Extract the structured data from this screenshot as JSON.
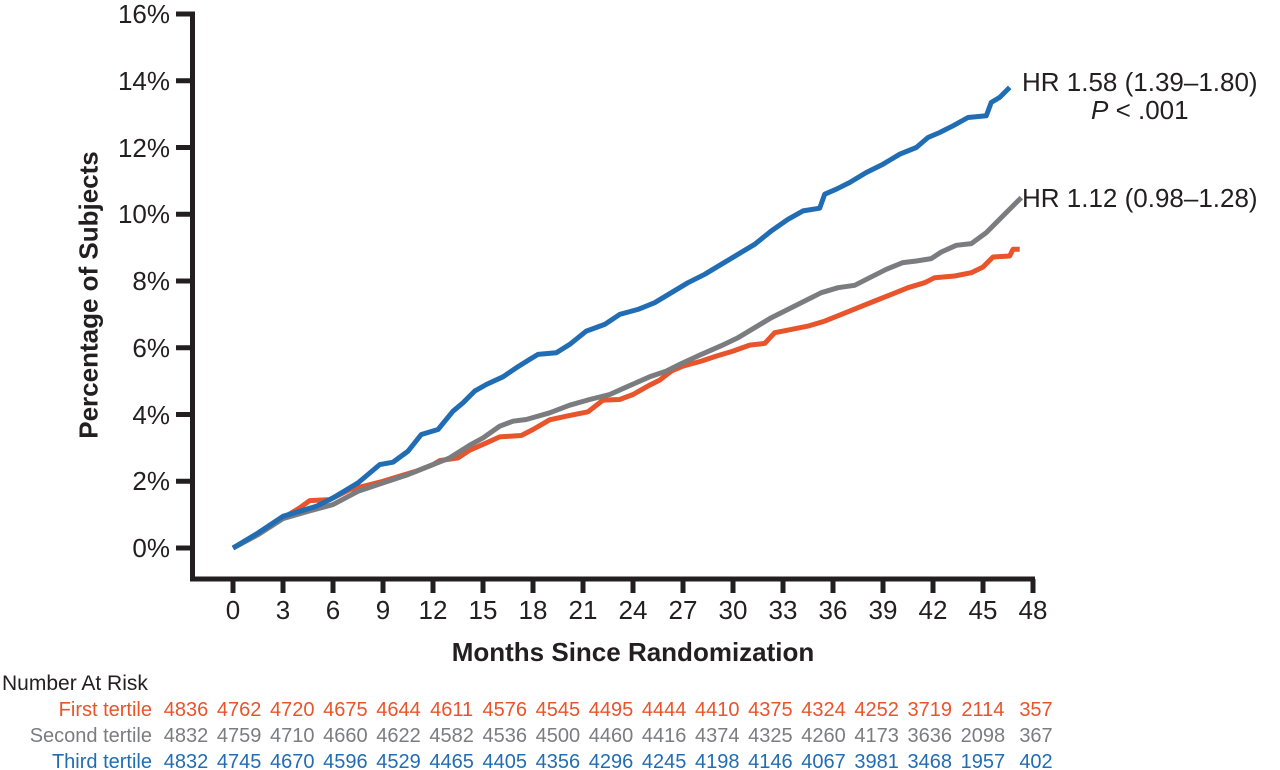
{
  "chart_data": {
    "type": "line",
    "title": "",
    "xlabel": "Months Since Randomization",
    "ylabel": "Percentage of Subjects",
    "xlim": [
      0,
      48
    ],
    "ylim": [
      0,
      16
    ],
    "x_ticks": [
      0,
      3,
      6,
      9,
      12,
      15,
      18,
      21,
      24,
      27,
      30,
      33,
      36,
      39,
      42,
      45,
      48
    ],
    "y_ticks": [
      0,
      2,
      4,
      6,
      8,
      10,
      12,
      14,
      16
    ],
    "y_tick_suffix": "%",
    "grid": false,
    "legend_position": "none",
    "axis_color": "#231F20",
    "series": [
      {
        "name": "First tertile",
        "color": "#E8542B",
        "points": [
          [
            0,
            0
          ],
          [
            1.5,
            0.4
          ],
          [
            3,
            0.9
          ],
          [
            4,
            1.2
          ],
          [
            4.6,
            1.42
          ],
          [
            5.8,
            1.45
          ],
          [
            7,
            1.75
          ],
          [
            8,
            1.87
          ],
          [
            9,
            2
          ],
          [
            10,
            2.15
          ],
          [
            11,
            2.3
          ],
          [
            12,
            2.5
          ],
          [
            12.4,
            2.62
          ],
          [
            13.5,
            2.7
          ],
          [
            14.2,
            2.93
          ],
          [
            15.2,
            3.15
          ],
          [
            16,
            3.33
          ],
          [
            17.3,
            3.37
          ],
          [
            18,
            3.55
          ],
          [
            19,
            3.84
          ],
          [
            20,
            3.95
          ],
          [
            21.3,
            4.08
          ],
          [
            22.2,
            4.43
          ],
          [
            23.2,
            4.45
          ],
          [
            24,
            4.6
          ],
          [
            25,
            4.88
          ],
          [
            25.6,
            5.03
          ],
          [
            26.3,
            5.3
          ],
          [
            27,
            5.45
          ],
          [
            28.1,
            5.6
          ],
          [
            29,
            5.75
          ],
          [
            30,
            5.9
          ],
          [
            31,
            6.08
          ],
          [
            31.9,
            6.13
          ],
          [
            32.5,
            6.45
          ],
          [
            33.5,
            6.55
          ],
          [
            34.5,
            6.65
          ],
          [
            35.5,
            6.8
          ],
          [
            36.5,
            7
          ],
          [
            37.5,
            7.2
          ],
          [
            38.5,
            7.4
          ],
          [
            39.5,
            7.6
          ],
          [
            40.5,
            7.8
          ],
          [
            41.5,
            7.95
          ],
          [
            42.1,
            8.1
          ],
          [
            43.3,
            8.15
          ],
          [
            44.3,
            8.25
          ],
          [
            45,
            8.42
          ],
          [
            45.6,
            8.72
          ],
          [
            46.6,
            8.75
          ],
          [
            46.8,
            8.95
          ],
          [
            47.2,
            8.95
          ]
        ]
      },
      {
        "name": "Second tertile",
        "color": "#7B7C7F",
        "points": [
          [
            0,
            0
          ],
          [
            1.5,
            0.4
          ],
          [
            3,
            0.88
          ],
          [
            4.5,
            1.1
          ],
          [
            6,
            1.3
          ],
          [
            7.5,
            1.7
          ],
          [
            9,
            1.95
          ],
          [
            10.5,
            2.2
          ],
          [
            12,
            2.5
          ],
          [
            13,
            2.7
          ],
          [
            14.2,
            3.08
          ],
          [
            15,
            3.3
          ],
          [
            16,
            3.65
          ],
          [
            16.8,
            3.8
          ],
          [
            17.6,
            3.85
          ],
          [
            19,
            4.05
          ],
          [
            20.2,
            4.28
          ],
          [
            21.4,
            4.45
          ],
          [
            22.6,
            4.6
          ],
          [
            23.5,
            4.8
          ],
          [
            25,
            5.13
          ],
          [
            26,
            5.3
          ],
          [
            26.8,
            5.5
          ],
          [
            28.1,
            5.8
          ],
          [
            29.3,
            6.06
          ],
          [
            30.3,
            6.3
          ],
          [
            31.3,
            6.6
          ],
          [
            32.3,
            6.9
          ],
          [
            33.3,
            7.15
          ],
          [
            34.3,
            7.4
          ],
          [
            35.3,
            7.65
          ],
          [
            36.3,
            7.8
          ],
          [
            37.3,
            7.87
          ],
          [
            38.2,
            8.1
          ],
          [
            39.2,
            8.35
          ],
          [
            40.2,
            8.55
          ],
          [
            41,
            8.6
          ],
          [
            41.9,
            8.67
          ],
          [
            42.5,
            8.87
          ],
          [
            43.4,
            9.07
          ],
          [
            44.3,
            9.12
          ],
          [
            45.2,
            9.45
          ],
          [
            46.2,
            9.95
          ],
          [
            47.3,
            10.5
          ]
        ]
      },
      {
        "name": "Third tertile",
        "color": "#216DB4",
        "points": [
          [
            0,
            0
          ],
          [
            1.5,
            0.45
          ],
          [
            3,
            0.95
          ],
          [
            4,
            1.1
          ],
          [
            5,
            1.25
          ],
          [
            6,
            1.5
          ],
          [
            7.5,
            1.95
          ],
          [
            8.8,
            2.5
          ],
          [
            9.6,
            2.57
          ],
          [
            10.5,
            2.9
          ],
          [
            11.3,
            3.4
          ],
          [
            12.3,
            3.55
          ],
          [
            13.2,
            4.1
          ],
          [
            13.8,
            4.35
          ],
          [
            14.5,
            4.7
          ],
          [
            15.2,
            4.9
          ],
          [
            16.2,
            5.13
          ],
          [
            17,
            5.4
          ],
          [
            17.8,
            5.65
          ],
          [
            18.3,
            5.8
          ],
          [
            19.4,
            5.85
          ],
          [
            20.2,
            6.1
          ],
          [
            21.2,
            6.5
          ],
          [
            22.3,
            6.7
          ],
          [
            23.2,
            7
          ],
          [
            24.3,
            7.15
          ],
          [
            25.3,
            7.35
          ],
          [
            26.3,
            7.65
          ],
          [
            27.3,
            7.95
          ],
          [
            28.3,
            8.2
          ],
          [
            29.3,
            8.5
          ],
          [
            30.3,
            8.8
          ],
          [
            31.3,
            9.1
          ],
          [
            32.3,
            9.5
          ],
          [
            33.3,
            9.85
          ],
          [
            34.2,
            10.1
          ],
          [
            35.2,
            10.18
          ],
          [
            35.5,
            10.6
          ],
          [
            36.2,
            10.75
          ],
          [
            37,
            10.95
          ],
          [
            38,
            11.25
          ],
          [
            39,
            11.5
          ],
          [
            40,
            11.8
          ],
          [
            41,
            12
          ],
          [
            41.7,
            12.3
          ],
          [
            42.4,
            12.45
          ],
          [
            43.2,
            12.65
          ],
          [
            44.1,
            12.9
          ],
          [
            45.2,
            12.95
          ],
          [
            45.5,
            13.35
          ],
          [
            46,
            13.5
          ],
          [
            46.6,
            13.8
          ]
        ]
      }
    ],
    "annotations": [
      {
        "text": "HR 1.58 (1.39–1.80)",
        "p_italic": "P",
        "p_text": " < .001"
      },
      {
        "text": "HR 1.12 (0.98–1.28)"
      }
    ]
  },
  "risk_table": {
    "header": "Number At Risk",
    "months": [
      0,
      3,
      6,
      9,
      12,
      15,
      18,
      21,
      24,
      27,
      30,
      33,
      36,
      39,
      42,
      45,
      48
    ],
    "rows": [
      {
        "label": "First tertile",
        "color": "#E8542B",
        "values": [
          4836,
          4762,
          4720,
          4675,
          4644,
          4611,
          4576,
          4545,
          4495,
          4444,
          4410,
          4375,
          4324,
          4252,
          3719,
          2114,
          357
        ]
      },
      {
        "label": "Second tertile",
        "color": "#7B7C7F",
        "values": [
          4832,
          4759,
          4710,
          4660,
          4622,
          4582,
          4536,
          4500,
          4460,
          4416,
          4374,
          4325,
          4260,
          4173,
          3636,
          2098,
          367
        ]
      },
      {
        "label": "Third tertile",
        "color": "#216DB4",
        "values": [
          4832,
          4745,
          4670,
          4596,
          4529,
          4465,
          4405,
          4356,
          4296,
          4245,
          4198,
          4146,
          4067,
          3981,
          3468,
          1957,
          402
        ]
      }
    ]
  }
}
